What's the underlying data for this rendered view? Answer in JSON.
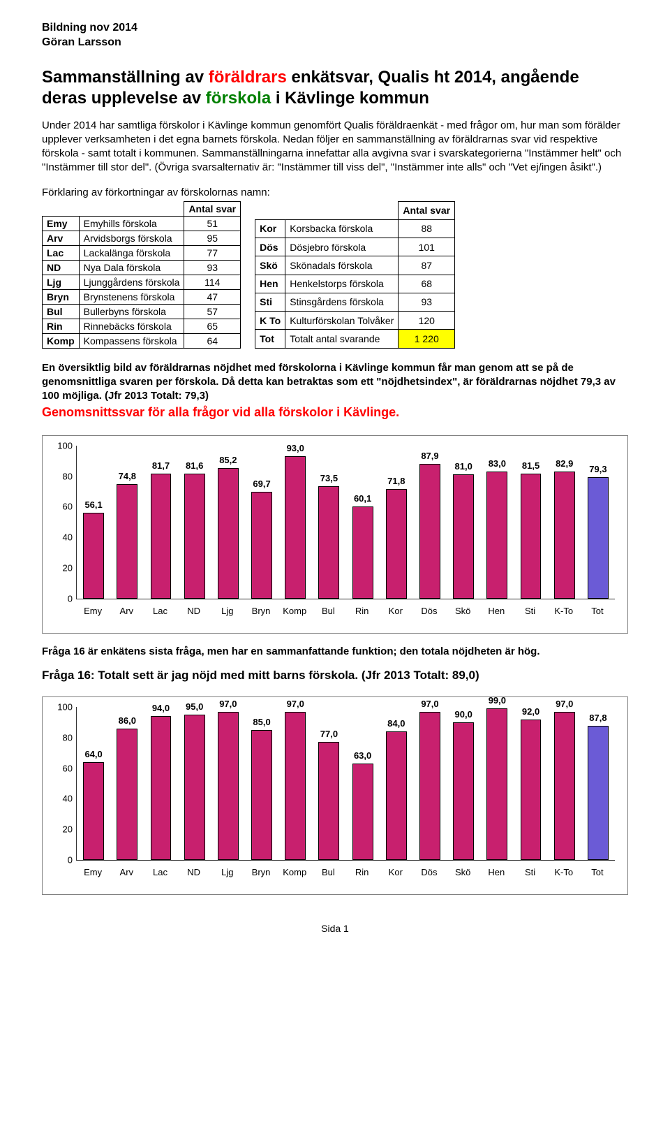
{
  "header": {
    "line1": "Bildning nov 2014",
    "line2": "Göran Larsson"
  },
  "title": {
    "t1": "Sammanställning av ",
    "t2_red": "föräldrars",
    "t3": " enkätsvar, Qualis ht 2014, angående deras upplevelse av ",
    "t4_green": "förskola",
    "t5": " i Kävlinge kommun"
  },
  "intro": "Under 2014 har samtliga förskolor i Kävlinge kommun genomfört Qualis föräldraenkät - med frågor om, hur man som förälder upplever verksamheten i det egna barnets förskola. Nedan följer en sammanställning av föräldrarnas svar vid respektive förskola - samt totalt i kommunen. Sammanställningarna innefattar alla avgivna svar i svarskategorierna \"Instämmer helt\" och \"Instämmer till stor del\". (Övriga svarsalternativ är: \"Instämmer till viss del\", \"Instämmer inte alls\" och \"Vet ej/ingen åsikt\".)",
  "forkortning_label": "Förklaring av förkortningar av förskolornas namn:",
  "col_header": "Antal svar",
  "left_table": [
    {
      "abbr": "Emy",
      "name": "Emyhills förskola",
      "n": "51"
    },
    {
      "abbr": "Arv",
      "name": "Arvidsborgs förskola",
      "n": "95"
    },
    {
      "abbr": "Lac",
      "name": "Lackalänga förskola",
      "n": "77"
    },
    {
      "abbr": "ND",
      "name": "Nya Dala förskola",
      "n": "93"
    },
    {
      "abbr": "Ljg",
      "name": "Ljunggårdens förskola",
      "n": "114"
    },
    {
      "abbr": "Bryn",
      "name": "Brynstenens förskola",
      "n": "47"
    },
    {
      "abbr": "Bul",
      "name": "Bullerbyns förskola",
      "n": "57"
    },
    {
      "abbr": "Rin",
      "name": "Rinnebäcks förskola",
      "n": "65"
    },
    {
      "abbr": "Komp",
      "name": "Kompassens förskola",
      "n": "64"
    }
  ],
  "right_table": [
    {
      "abbr": "Kor",
      "name": "Korsbacka förskola",
      "n": "88",
      "hl": false
    },
    {
      "abbr": "Dös",
      "name": "Dösjebro förskola",
      "n": "101",
      "hl": false
    },
    {
      "abbr": "Skö",
      "name": "Skönadals förskola",
      "n": "87",
      "hl": false
    },
    {
      "abbr": "Hen",
      "name": "Henkelstorps förskola",
      "n": "68",
      "hl": false
    },
    {
      "abbr": "Sti",
      "name": "Stinsgårdens förskola",
      "n": "93",
      "hl": false
    },
    {
      "abbr": "K To",
      "name": "Kulturförskolan Tolvåker",
      "n": "120",
      "hl": false
    },
    {
      "abbr": "Tot",
      "name": "Totalt antal svarande",
      "n": "1 220",
      "hl": true
    }
  ],
  "para2": {
    "l1": "En översiktlig bild av föräldrarnas nöjdhet med förskolorna i Kävlinge kommun får man genom att se på de genomsnittliga svaren per förskola. Då detta kan betraktas som ett \"nöjdhetsindex\", är föräldrarnas nöjdhet 79,3 av 100 möjliga. (Jfr 2013 Totalt: 79,3)"
  },
  "red_subtitle": "Genomsnittssvar för alla frågor vid alla förskolor i Kävlinge.",
  "chart1": {
    "categories": [
      "Emy",
      "Arv",
      "Lac",
      "ND",
      "Ljg",
      "Bryn",
      "Komp",
      "Bul",
      "Rin",
      "Kor",
      "Dös",
      "Skö",
      "Hen",
      "Sti",
      "K-To",
      "Tot"
    ],
    "values": [
      56.1,
      74.8,
      81.7,
      81.6,
      85.2,
      69.7,
      93.0,
      73.5,
      60.1,
      71.8,
      87.9,
      81.0,
      83.0,
      81.5,
      82.9,
      79.3
    ],
    "labels": [
      "56,1",
      "74,8",
      "81,7",
      "81,6",
      "85,2",
      "69,7",
      "93,0",
      "73,5",
      "60,1",
      "71,8",
      "87,9",
      "81,0",
      "83,0",
      "81,5",
      "82,9",
      "79,3"
    ],
    "last_is_total": true,
    "ymax": 100,
    "ystep": 20,
    "bar_color": "#c8206e",
    "bar_border": "#000000",
    "total_color": "#6b5bd6"
  },
  "between_text": "Fråga 16 är enkätens sista fråga, men har en sammanfattande funktion; den totala nöjdheten är hög.",
  "q16_title": "Fråga 16: Totalt sett är jag nöjd med mitt barns förskola. (Jfr 2013 Totalt: 89,0)",
  "chart2": {
    "categories": [
      "Emy",
      "Arv",
      "Lac",
      "ND",
      "Ljg",
      "Bryn",
      "Komp",
      "Bul",
      "Rin",
      "Kor",
      "Dös",
      "Skö",
      "Hen",
      "Sti",
      "K-To",
      "Tot"
    ],
    "values": [
      64.0,
      86.0,
      94.0,
      95.0,
      97.0,
      85.0,
      97.0,
      77.0,
      63.0,
      84.0,
      97.0,
      90.0,
      99.0,
      92.0,
      97.0,
      87.8
    ],
    "labels": [
      "64,0",
      "86,0",
      "94,0",
      "95,0",
      "97,0",
      "85,0",
      "97,0",
      "77,0",
      "63,0",
      "84,0",
      "97,0",
      "90,0",
      "99,0",
      "92,0",
      "97,0",
      "87,8"
    ],
    "last_is_total": true,
    "ymax": 100,
    "ystep": 20,
    "bar_color": "#c8206e",
    "bar_border": "#000000",
    "total_color": "#6b5bd6"
  },
  "footer": "Sida 1"
}
